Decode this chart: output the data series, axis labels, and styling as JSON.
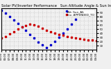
{
  "title": "Solar PV/Inverter Performance   Sun Altitude Angle & Sun Incidence Angle on PV Panels",
  "legend_label_blue": "Alt: Sun_Alt",
  "legend_label_red": "Inc: APPENDED_TO",
  "blue_color": "#0000cc",
  "red_color": "#cc0000",
  "blue_x": [
    0,
    1,
    2,
    3,
    4,
    5,
    6,
    7,
    8,
    9,
    10,
    11,
    12,
    13,
    14,
    15,
    16,
    17,
    18
  ],
  "blue_y": [
    95,
    88,
    80,
    72,
    64,
    55,
    46,
    37,
    28,
    19,
    11,
    5,
    12,
    20,
    30,
    40,
    50,
    62,
    73
  ],
  "red_x": [
    0,
    1,
    2,
    3,
    4,
    5,
    6,
    7,
    8,
    9,
    10,
    11,
    12,
    13,
    14,
    15,
    16,
    17,
    18,
    19,
    20,
    21,
    22,
    23
  ],
  "red_y": [
    28,
    32,
    38,
    44,
    50,
    55,
    59,
    61,
    60,
    57,
    52,
    47,
    43,
    40,
    37,
    35,
    32,
    30,
    28,
    26,
    25,
    24,
    23,
    22
  ],
  "xlim": [
    0,
    23
  ],
  "ylim": [
    0,
    100
  ],
  "yticks_right": [
    10,
    20,
    30,
    40,
    50,
    60,
    70,
    80,
    90
  ],
  "xtick_positions": [
    0,
    1,
    2,
    3,
    4,
    5,
    6,
    7,
    8,
    9,
    10,
    11,
    12,
    13,
    14,
    15,
    16,
    17,
    18,
    19,
    20,
    21,
    22,
    23
  ],
  "xtick_labels": [
    "05:00",
    "06:00",
    "07:00",
    "08:00",
    "09:00",
    "10:00",
    "11:00",
    "12:00",
    "13:00",
    "14:00",
    "15:00",
    "16:00",
    "17:00",
    "18:00",
    "19:00",
    "20:00",
    "21:00",
    "22:00",
    "23:00",
    "00:00",
    "01:00",
    "02:00",
    "03:00",
    "04:00"
  ],
  "bg_color": "#f0f0f0",
  "grid_color": "#999999",
  "title_fontsize": 3.8,
  "tick_fontsize": 2.8,
  "marker_size": 1.8,
  "legend_fontsize": 3.0
}
